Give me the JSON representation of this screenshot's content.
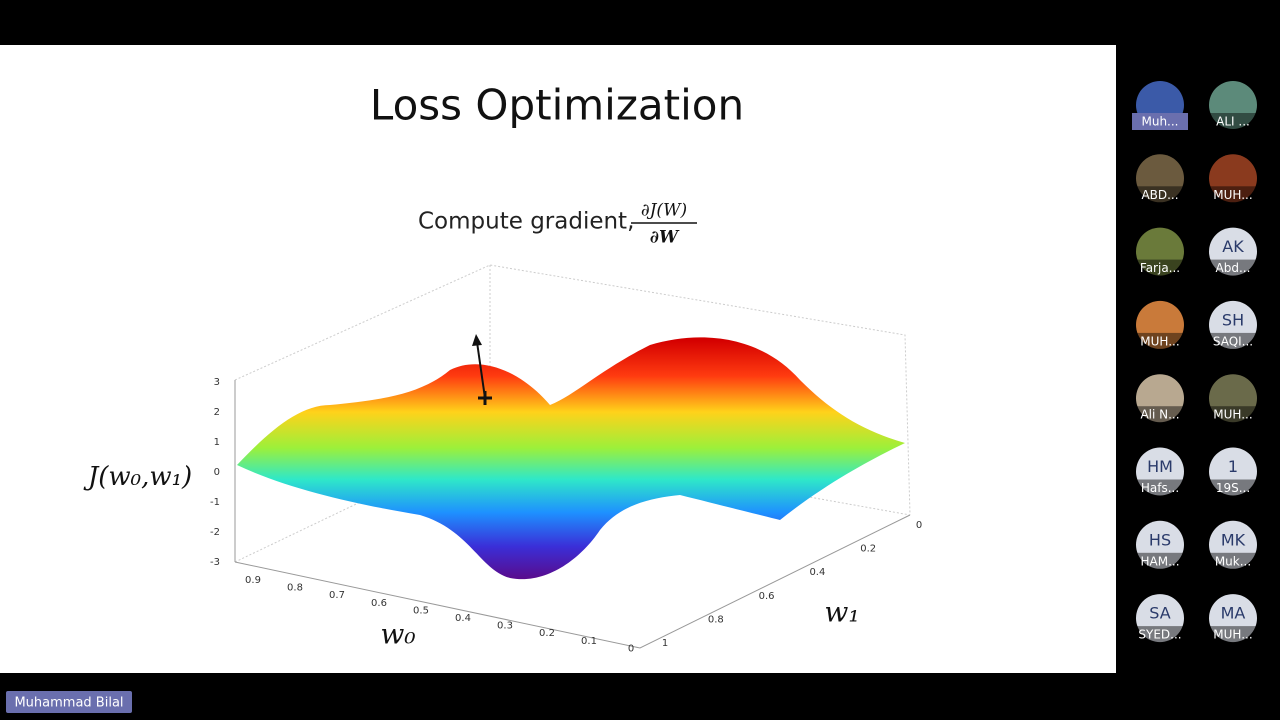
{
  "slide": {
    "title": "Loss Optimization",
    "gradient_text": "Compute gradient,",
    "fraction_numerator": "∂J(W)",
    "fraction_denominator": "∂W",
    "z_axis_label": "J(w₀,w₁)",
    "w0_axis_label": "w₀",
    "w1_axis_label": "w₁",
    "z_ticks": [
      "3",
      "2",
      "1",
      "0",
      "-1",
      "-2",
      "-3"
    ],
    "w0_ticks": [
      "0.9",
      "0.8",
      "0.7",
      "0.6",
      "0.5",
      "0.4",
      "0.3",
      "0.2",
      "0.1",
      "0"
    ],
    "w1_ticks": [
      "0",
      "0.2",
      "0.4",
      "0.6",
      "0.8",
      "1"
    ]
  },
  "participants": [
    {
      "name": "Muh..."
    },
    {
      "name": "ALI ..."
    },
    {
      "name": "ABD..."
    },
    {
      "name": "MUH..."
    },
    {
      "name": "Farja..."
    },
    {
      "initials": "AK",
      "name": "Abd..."
    },
    {
      "name": "MUH..."
    },
    {
      "initials": "SH",
      "name": "SAQI..."
    },
    {
      "name": "Ali N..."
    },
    {
      "name": "MUH..."
    },
    {
      "initials": "HM",
      "name": "Hafs..."
    },
    {
      "initials": "1",
      "name": "19S..."
    },
    {
      "initials": "HS",
      "name": "HAM..."
    },
    {
      "initials": "MK",
      "name": "Muk..."
    },
    {
      "initials": "SA",
      "name": "SYED..."
    },
    {
      "initials": "MA",
      "name": "MUH..."
    }
  ],
  "speaker": {
    "name": "Muhammad Bilal"
  }
}
